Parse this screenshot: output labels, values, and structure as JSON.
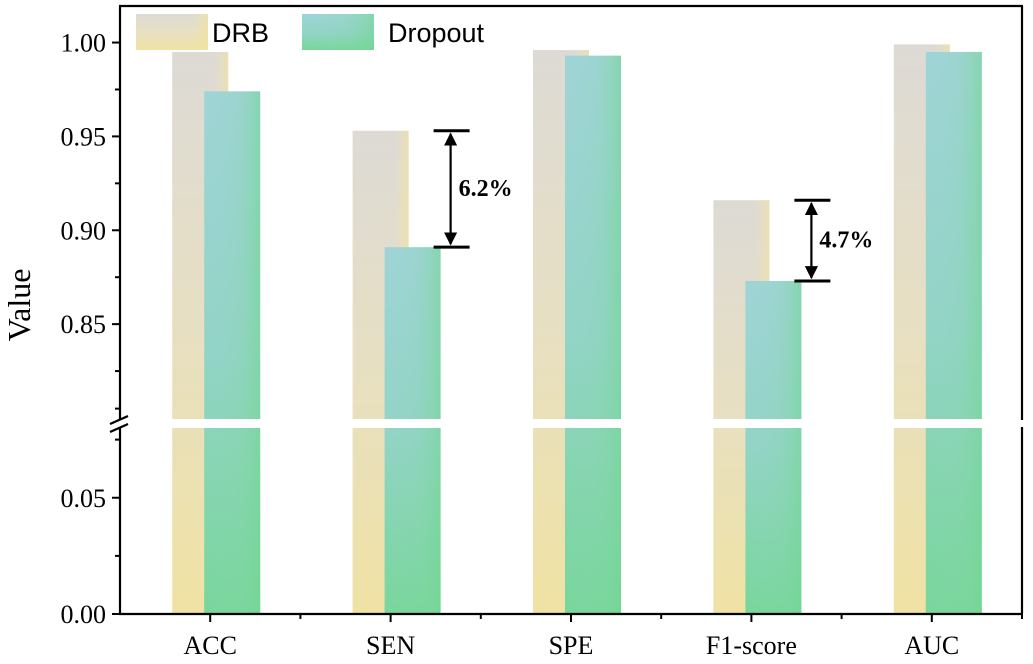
{
  "chart_data": {
    "type": "bar",
    "ylabel": "Value",
    "xlabel": "",
    "categories": [
      "ACC",
      "SEN",
      "SPE",
      "F1-score",
      "AUC"
    ],
    "series": [
      {
        "name": "DRB",
        "values": [
          0.995,
          0.953,
          0.996,
          0.916,
          0.999
        ]
      },
      {
        "name": "Dropout",
        "values": [
          0.974,
          0.891,
          0.993,
          0.873,
          0.995
        ]
      }
    ],
    "y_break": {
      "lower_range": [
        0.0,
        0.08
      ],
      "upper_range": [
        0.8,
        1.02
      ]
    },
    "y_ticks": [
      {
        "value": 0.0,
        "label": "0.00"
      },
      {
        "value": 0.05,
        "label": "0.05"
      },
      {
        "value": 0.85,
        "label": "0.85"
      },
      {
        "value": 0.9,
        "label": "0.90"
      },
      {
        "value": 0.95,
        "label": "0.95"
      },
      {
        "value": 1.0,
        "label": "1.00"
      }
    ],
    "legend": {
      "placement": "top-left"
    },
    "annotations": [
      {
        "category": "SEN",
        "text": "6.2%"
      },
      {
        "category": "F1-score",
        "text": "4.7%"
      }
    ],
    "colors": {
      "DRB": [
        "#dedbd6",
        "#f0e09a"
      ],
      "Dropout": [
        "#9fd6d6",
        "#78d69a"
      ]
    }
  }
}
